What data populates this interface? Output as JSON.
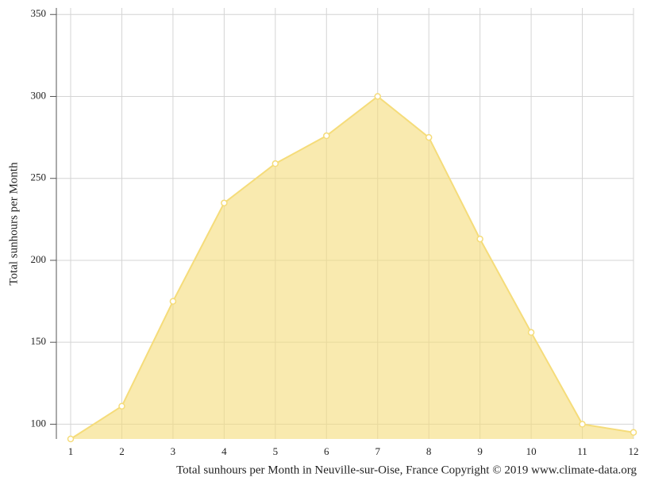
{
  "chart_data": {
    "type": "area",
    "y_label": "Total sunhours per Month",
    "x_label": "Total sunhours per Month in Neuville-sur-Oise, France Copyright © 2019 www.climate-data.org",
    "x": [
      1,
      2,
      3,
      4,
      5,
      6,
      7,
      8,
      9,
      10,
      11,
      12
    ],
    "series": [
      {
        "name": "Total sunhours per Month",
        "color": "#f5dc7a",
        "values": [
          91,
          111,
          175,
          235,
          259,
          276,
          300,
          275,
          213,
          156,
          100,
          95
        ]
      }
    ],
    "xlim": [
      1,
      12
    ],
    "xticks": [
      1,
      2,
      3,
      4,
      5,
      6,
      7,
      8,
      9,
      10,
      11,
      12
    ],
    "ylim": [
      91,
      354
    ],
    "yticks": [
      100,
      150,
      200,
      250,
      300,
      350
    ],
    "grid": true
  }
}
